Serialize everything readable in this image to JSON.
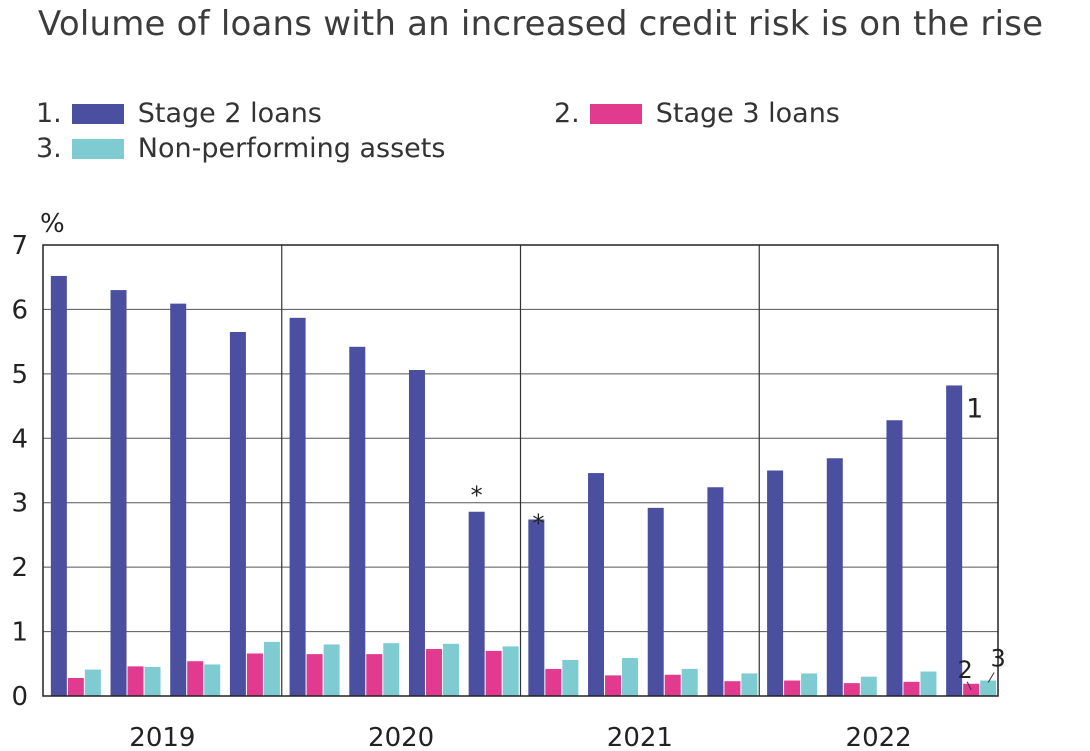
{
  "title": "Volume of loans with an increased credit risk is on the rise",
  "legend": [
    {
      "number": "1.",
      "label": "Stage 2 loans",
      "color": "#4b4fa0"
    },
    {
      "number": "2.",
      "label": "Stage 3 loans",
      "color": "#e23a8e"
    },
    {
      "number": "3.",
      "label": "Non-performing assets",
      "color": "#7ecbd2"
    }
  ],
  "chart_data": {
    "type": "bar",
    "ylabel": "%",
    "ylim": [
      0,
      7
    ],
    "yticks": [
      "0",
      "1",
      "2",
      "3",
      "4",
      "5",
      "6",
      "7"
    ],
    "year_labels": [
      "2019",
      "2020",
      "2021",
      "2022"
    ],
    "quarters_per_year": 4,
    "grid": true,
    "series": [
      {
        "name": "Stage 2 loans",
        "color": "#4b4fa0",
        "values": [
          6.52,
          6.3,
          6.09,
          5.65,
          5.87,
          5.42,
          5.06,
          2.86,
          2.74,
          3.46,
          2.92,
          3.24,
          3.5,
          3.69,
          4.28,
          4.82
        ]
      },
      {
        "name": "Stage 3 loans",
        "color": "#e23a8e",
        "values": [
          0.28,
          0.46,
          0.54,
          0.66,
          0.65,
          0.65,
          0.73,
          0.7,
          0.42,
          0.32,
          0.33,
          0.23,
          0.24,
          0.2,
          0.22,
          0.19
        ]
      },
      {
        "name": "Non-performing assets",
        "color": "#7ecbd2",
        "values": [
          0.41,
          0.45,
          0.49,
          0.84,
          0.8,
          0.82,
          0.81,
          0.77,
          0.56,
          0.59,
          0.42,
          0.35,
          0.35,
          0.3,
          0.38,
          0.24
        ]
      }
    ],
    "annotations": [
      {
        "text": "*",
        "series": 0,
        "index": 7
      },
      {
        "text": "*",
        "series": 0,
        "index": 8
      },
      {
        "text": "1",
        "series": 0,
        "index": 15
      },
      {
        "text": "2",
        "series": 1,
        "index": 15
      },
      {
        "text": "3",
        "series": 2,
        "index": 15
      }
    ]
  }
}
